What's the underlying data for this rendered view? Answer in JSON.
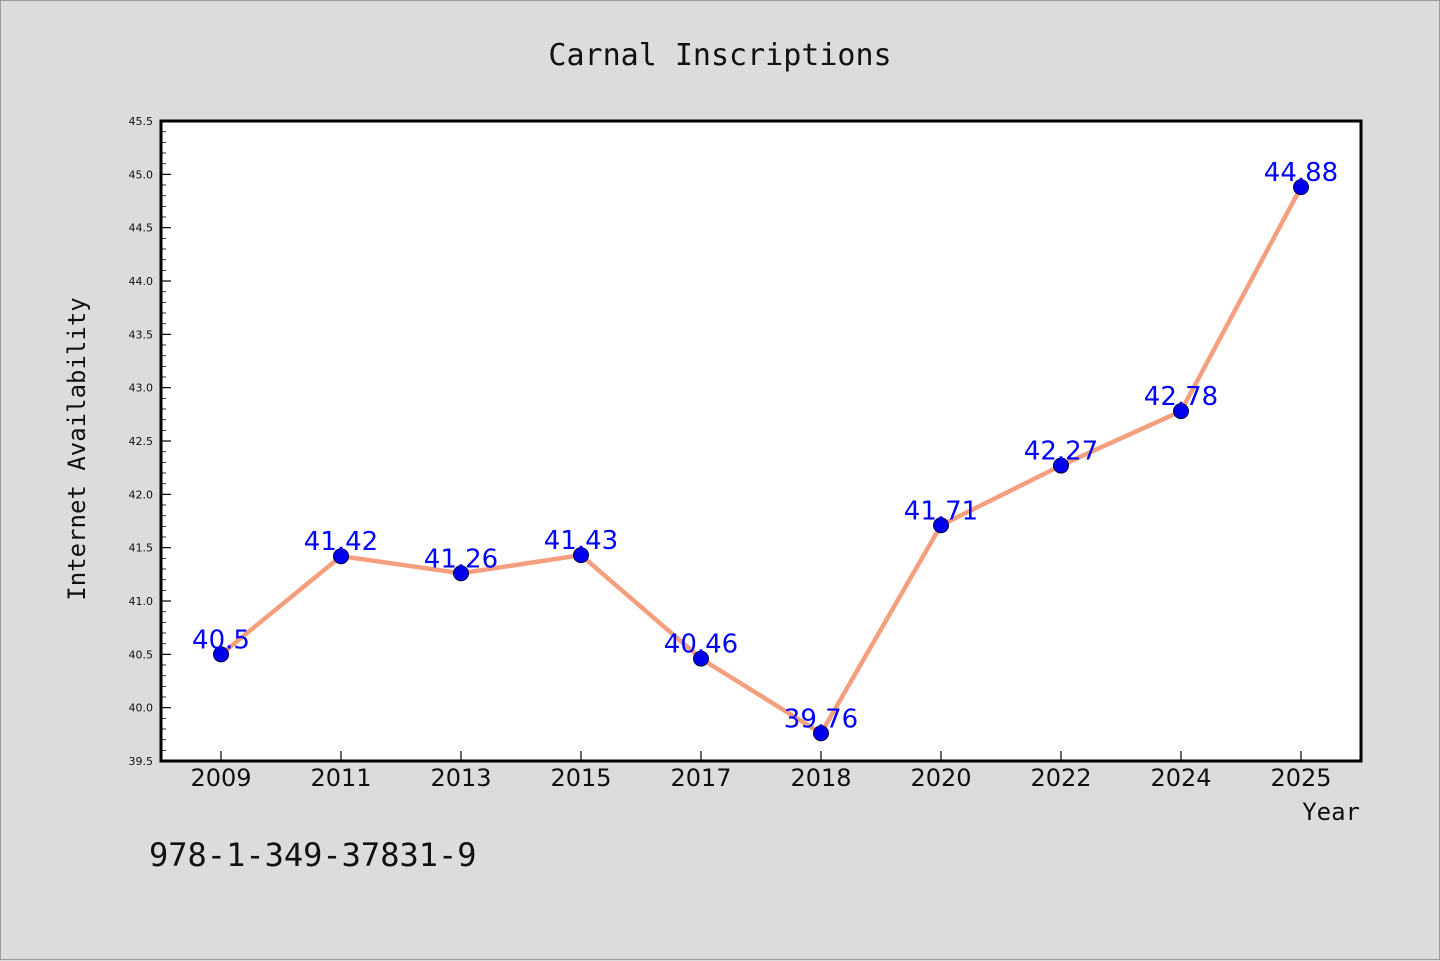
{
  "chart_data": {
    "type": "line",
    "title": "Carnal Inscriptions",
    "xlabel": "Year",
    "ylabel": "Internet Availability",
    "categories": [
      "2009",
      "2011",
      "2013",
      "2015",
      "2017",
      "2018",
      "2020",
      "2022",
      "2024",
      "2025"
    ],
    "values": [
      40.5,
      41.42,
      41.26,
      41.43,
      40.46,
      39.76,
      41.71,
      42.27,
      42.78,
      44.88
    ],
    "data_labels": [
      "40.5",
      "41.42",
      "41.26",
      "41.43",
      "40.46",
      "39.76",
      "41.71",
      "42.27",
      "42.78",
      "44.88"
    ],
    "ylim": [
      39.5,
      45.5
    ],
    "yticks": [
      "39.5",
      "40.0",
      "40.5",
      "41.0",
      "41.5",
      "42.0",
      "42.5",
      "43.0",
      "43.5",
      "44.0",
      "44.5",
      "45.0",
      "45.5"
    ],
    "grid": false,
    "legend": "none",
    "line_color": "#f4a07e",
    "marker_color": "#0000ee",
    "label_color": "#0000ff"
  },
  "footer": {
    "isbn": "978-1-349-37831-9"
  }
}
